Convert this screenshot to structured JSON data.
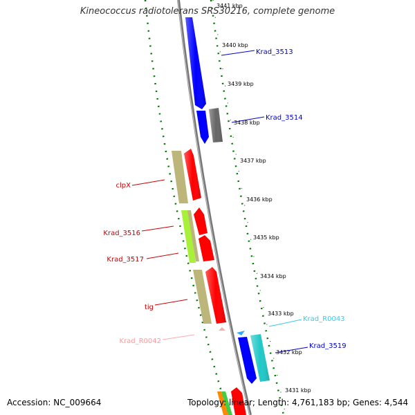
{
  "title": "Kineococcus radiotolerans SRS30216, complete genome",
  "footer": {
    "accession": "Accession: NC_009664",
    "summary": "Topology: linear; Length: 4,761,183 bp; Genes: 4,544"
  },
  "ticks": [
    "3441 kbp",
    "3440 kbp",
    "3439 kbp",
    "3438 kbp",
    "3437 kbp",
    "3436 kbp",
    "3435 kbp",
    "3434 kbp",
    "3433 kbp",
    "3432 kbp",
    "3431 kbp"
  ],
  "gene_labels": {
    "krad_3513": "Krad_3513",
    "krad_3514": "Krad_3514",
    "clpx": "clpX",
    "krad_3516": "Krad_3516",
    "krad_3517": "Krad_3517",
    "tig": "tig",
    "krad_r0042": "Krad_R0042",
    "krad_r0043": "Krad_R0043",
    "krad_3519": "Krad_3519"
  },
  "colors": {
    "forward_gene": "#ff0000",
    "reverse_gene": "#0000ff",
    "khaki_gene": "#bdb67a",
    "lime_gene": "#a8f03a",
    "gray_gene": "#666666",
    "cyan_gene": "#22c8c8",
    "trna": "#ffaaaa",
    "rrna": "#33ccff",
    "dots": "#007700",
    "backbone": "#888888"
  }
}
